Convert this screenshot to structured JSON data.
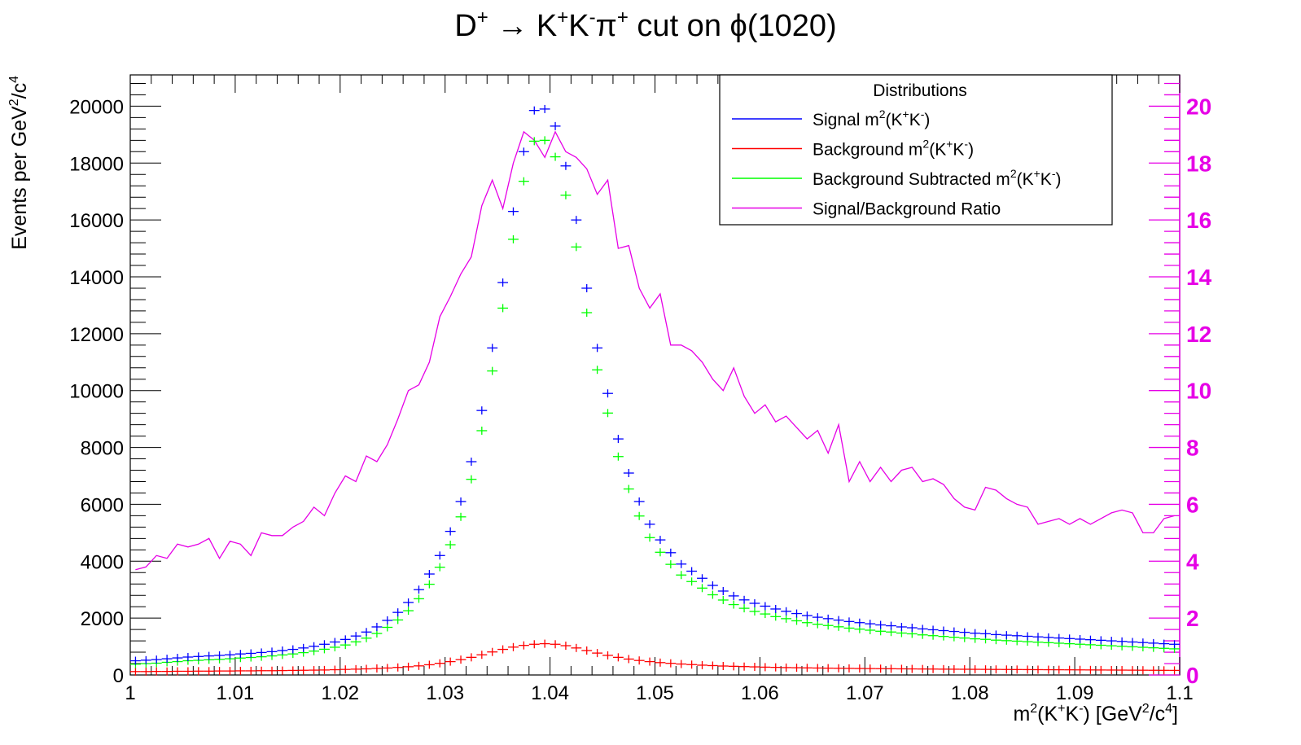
{
  "chart_data": {
    "type": "scatter",
    "title": {
      "pre": "D",
      "sup1": "+",
      "arrow": " → K",
      "sup2": "+",
      "k2": "K",
      "sup3": "-",
      "pi": "π",
      "sup4": "+",
      "post": "  cut on  ",
      "phi": "ϕ",
      "tail": "(1020)"
    },
    "xlabel": {
      "a": "m",
      "sup1": "2",
      "b": "(K",
      "sup2": "+",
      "c": "K",
      "sup3": "-",
      "d": ") [GeV",
      "sup4": "2",
      "e": "/c",
      "sup5": "4",
      "f": "]"
    },
    "ylabel": {
      "a": "Events per GeV",
      "sup1": "2",
      "b": "/c",
      "sup2": "4"
    },
    "xlim": [
      1.0,
      1.1
    ],
    "ylim": [
      0,
      21100
    ],
    "y2lim": [
      0,
      21.1
    ],
    "x_ticks": [
      "1",
      "1.01",
      "1.02",
      "1.03",
      "1.04",
      "1.05",
      "1.06",
      "1.07",
      "1.08",
      "1.09",
      "1.1"
    ],
    "y_ticks": [
      "0",
      "2000",
      "4000",
      "6000",
      "8000",
      "10000",
      "12000",
      "14000",
      "16000",
      "18000",
      "20000"
    ],
    "y2_ticks": [
      "0",
      "2",
      "4",
      "6",
      "8",
      "10",
      "12",
      "14",
      "16",
      "18",
      "20"
    ],
    "legend": {
      "title": "Distributions",
      "placement": "top-right",
      "entries": [
        {
          "a": "Signal m",
          "sup1": "2",
          "b": "(K",
          "sup2": "+",
          "c": "K",
          "sup3": "-",
          "d": ")",
          "color": "#0000ff"
        },
        {
          "a": "Background m",
          "sup1": "2",
          "b": "(K",
          "sup2": "+",
          "c": "K",
          "sup3": "-",
          "d": ")",
          "color": "#ff0000"
        },
        {
          "a": "Background Subtracted m",
          "sup1": "2",
          "b": "(K",
          "sup2": "+",
          "c": "K",
          "sup3": "-",
          "d": ")",
          "color": "#00ff00"
        },
        {
          "a": "Signal/Background Ratio",
          "sup1": "",
          "b": "",
          "sup2": "",
          "c": "",
          "sup3": "",
          "d": "",
          "color": "#e600e6"
        }
      ]
    },
    "colors": {
      "signal": "#0000ff",
      "background": "#ff0000",
      "subtracted": "#00ff00",
      "ratio": "#e600e6"
    },
    "series": [
      {
        "key": "signal",
        "style": "crosses",
        "values": [
          500,
          520,
          540,
          570,
          600,
          630,
          650,
          670,
          690,
          710,
          740,
          760,
          790,
          820,
          860,
          900,
          950,
          1010,
          1080,
          1160,
          1250,
          1370,
          1510,
          1690,
          1920,
          2200,
          2550,
          3000,
          3550,
          4200,
          5050,
          6100,
          7500,
          9300,
          11500,
          13800,
          16300,
          18400,
          19850,
          19900,
          19300,
          17900,
          16000,
          13600,
          11500,
          9900,
          8300,
          7100,
          6100,
          5300,
          4750,
          4300,
          3900,
          3650,
          3400,
          3150,
          2950,
          2780,
          2640,
          2520,
          2420,
          2320,
          2240,
          2160,
          2090,
          2030,
          1980,
          1930,
          1880,
          1840,
          1800,
          1760,
          1730,
          1690,
          1660,
          1620,
          1590,
          1560,
          1530,
          1500,
          1470,
          1450,
          1420,
          1400,
          1380,
          1360,
          1340,
          1320,
          1300,
          1280,
          1260,
          1240,
          1220,
          1200,
          1180,
          1160,
          1140,
          1120,
          1100,
          1080
        ]
      },
      {
        "key": "background",
        "style": "crosses",
        "values": [
          120,
          120,
          125,
          125,
          130,
          130,
          135,
          135,
          140,
          140,
          145,
          145,
          150,
          150,
          155,
          160,
          165,
          170,
          175,
          185,
          195,
          205,
          215,
          230,
          245,
          265,
          290,
          320,
          360,
          410,
          470,
          540,
          620,
          710,
          810,
          900,
          980,
          1040,
          1080,
          1100,
          1080,
          1030,
          950,
          860,
          770,
          690,
          620,
          560,
          510,
          470,
          435,
          410,
          385,
          365,
          345,
          330,
          315,
          305,
          295,
          285,
          275,
          268,
          260,
          255,
          250,
          245,
          240,
          236,
          232,
          228,
          225,
          222,
          219,
          216,
          213,
          210,
          208,
          205,
          203,
          201,
          199,
          197,
          195,
          193,
          191,
          189,
          187,
          185,
          183,
          181,
          179,
          177,
          175,
          173,
          171,
          169,
          167,
          165,
          163,
          161
        ]
      },
      {
        "key": "subtracted",
        "style": "crosses",
        "values": [
          380,
          400,
          415,
          445,
          470,
          500,
          515,
          535,
          550,
          570,
          595,
          615,
          640,
          670,
          705,
          740,
          785,
          840,
          905,
          975,
          1055,
          1165,
          1295,
          1460,
          1675,
          1935,
          2260,
          2680,
          3190,
          3790,
          4580,
          5560,
          6880,
          8590,
          10690,
          12900,
          15320,
          17360,
          18770,
          18800,
          18220,
          16870,
          15050,
          12740,
          10730,
          9210,
          7680,
          6540,
          5590,
          4830,
          4315,
          3890,
          3515,
          3285,
          3055,
          2820,
          2635,
          2475,
          2345,
          2235,
          2145,
          2052,
          1980,
          1905,
          1840,
          1785,
          1740,
          1694,
          1648,
          1612,
          1575,
          1538,
          1511,
          1474,
          1447,
          1410,
          1382,
          1355,
          1327,
          1299,
          1271,
          1253,
          1225,
          1207,
          1189,
          1171,
          1153,
          1135,
          1117,
          1099,
          1081,
          1063,
          1045,
          1027,
          1009,
          991,
          973,
          955,
          937,
          919
        ]
      },
      {
        "key": "ratio",
        "style": "line",
        "axis": "right",
        "values": [
          3.7,
          3.8,
          4.2,
          4.1,
          4.6,
          4.5,
          4.6,
          4.8,
          4.1,
          4.7,
          4.6,
          4.2,
          5.0,
          4.9,
          4.9,
          5.2,
          5.4,
          5.9,
          5.6,
          6.4,
          7.0,
          6.8,
          7.7,
          7.5,
          8.1,
          9.0,
          10.0,
          10.2,
          11.0,
          12.6,
          13.3,
          14.1,
          14.7,
          16.5,
          17.4,
          16.4,
          18.0,
          19.1,
          18.8,
          18.2,
          19.1,
          18.4,
          18.2,
          17.8,
          16.9,
          17.4,
          15.0,
          15.1,
          13.6,
          12.9,
          13.4,
          11.6,
          11.6,
          11.4,
          11.0,
          10.4,
          10.0,
          10.8,
          9.8,
          9.2,
          9.5,
          8.9,
          9.1,
          8.7,
          8.3,
          8.6,
          7.8,
          8.8,
          6.8,
          7.5,
          6.8,
          7.3,
          6.8,
          7.2,
          7.3,
          6.8,
          6.9,
          6.7,
          6.2,
          5.9,
          5.8,
          6.6,
          6.5,
          6.2,
          6.0,
          5.9,
          5.3,
          5.4,
          5.5,
          5.3,
          5.5,
          5.3,
          5.5,
          5.7,
          5.8,
          5.7,
          5.0,
          5.0,
          5.5,
          5.6
        ]
      }
    ]
  }
}
